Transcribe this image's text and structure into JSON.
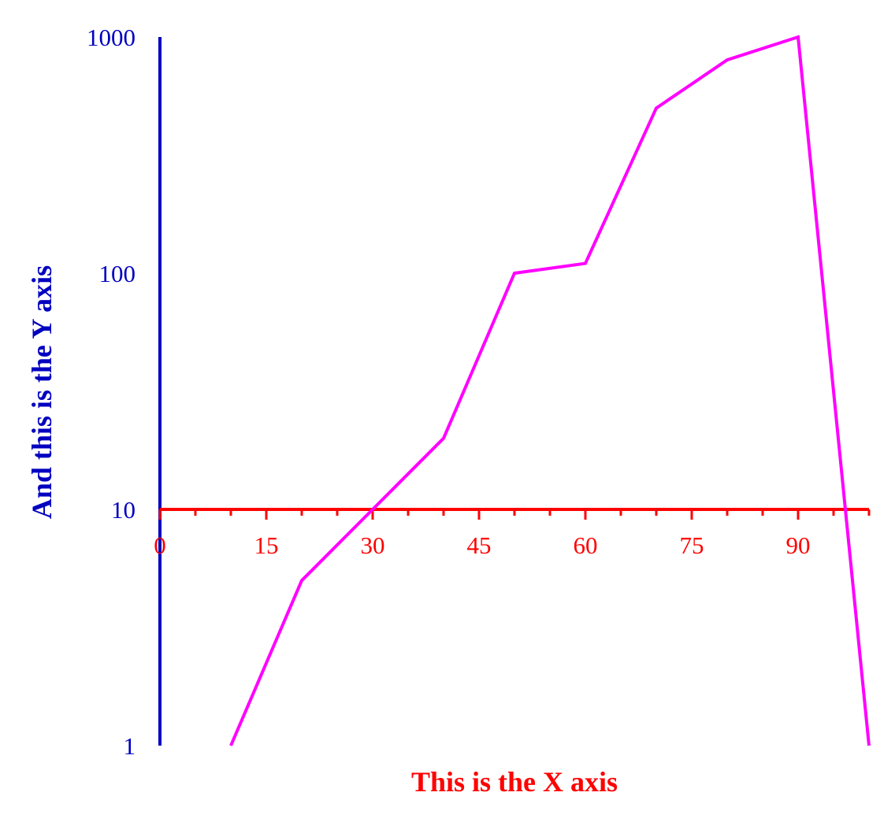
{
  "chart_data": {
    "type": "line",
    "xlabel": "This is the X axis",
    "ylabel": "And this is the Y axis",
    "x_scale": "linear",
    "y_scale": "log",
    "xlim": [
      0,
      100
    ],
    "ylim": [
      1,
      1000
    ],
    "x_ticks": [
      0,
      15,
      30,
      45,
      60,
      75,
      90
    ],
    "x_tick_labels": [
      "0",
      "15",
      "30",
      "45",
      "60",
      "75",
      "90"
    ],
    "x_minor_ticks": [
      5,
      10,
      20,
      25,
      35,
      40,
      50,
      55,
      65,
      70,
      80,
      85,
      95,
      100
    ],
    "y_ticks": [
      1,
      10,
      100,
      1000
    ],
    "y_tick_labels": [
      "1",
      "10",
      "100",
      "1000"
    ],
    "x_axis_crosses_y_at": 10,
    "grid": false,
    "legend": "none",
    "colors": {
      "x_axis": "#ff0000",
      "y_axis": "#0000c0",
      "series": "#ff00ff"
    },
    "series": [
      {
        "x": [
          10,
          20,
          30,
          40,
          50,
          60,
          70,
          80,
          90,
          100
        ],
        "y": [
          1,
          5,
          10,
          20,
          100,
          110,
          500,
          800,
          1000,
          1
        ]
      }
    ]
  }
}
